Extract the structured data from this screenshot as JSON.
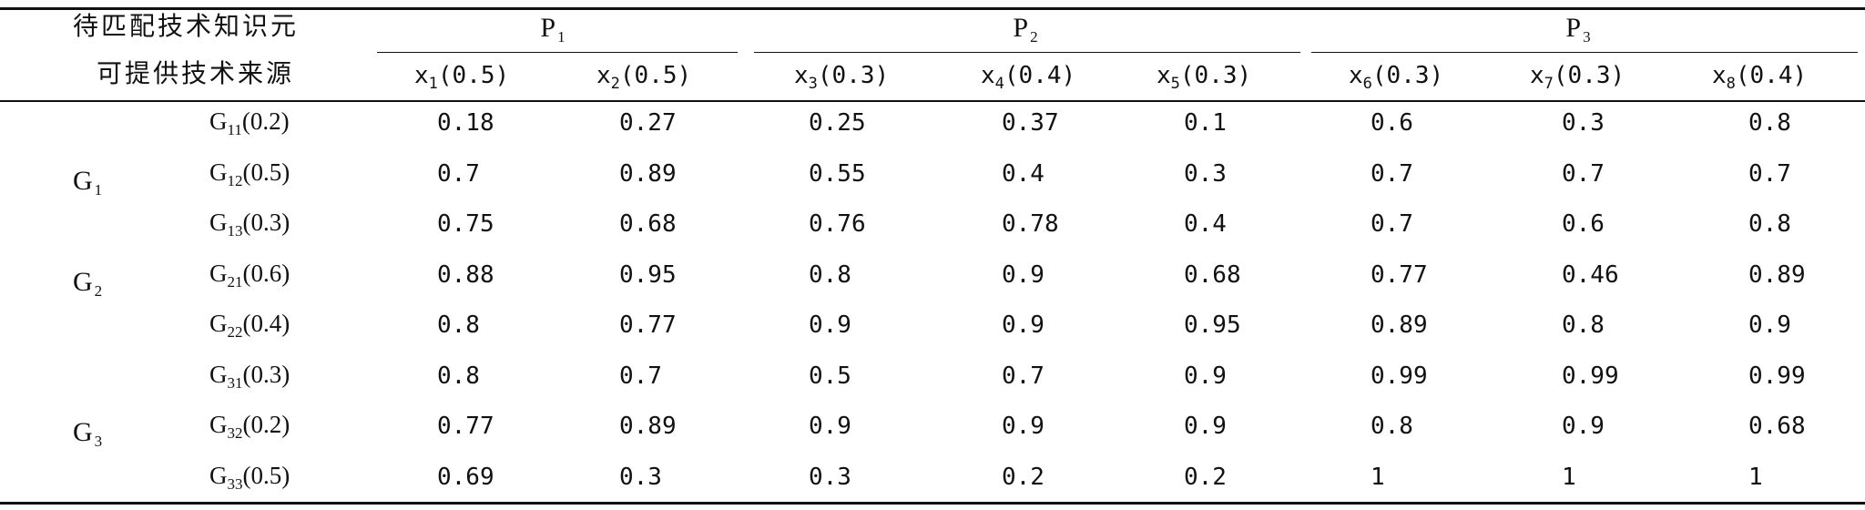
{
  "header": {
    "corner_top": "待匹配技术知识元",
    "corner_bottom": "可提供技术来源",
    "groups": [
      {
        "letter": "P",
        "sub": "1"
      },
      {
        "letter": "P",
        "sub": "2"
      },
      {
        "letter": "P",
        "sub": "3"
      }
    ],
    "columns": [
      {
        "letter": "x",
        "sub": "1",
        "weight": "(0.5)"
      },
      {
        "letter": "x",
        "sub": "2",
        "weight": "(0.5)"
      },
      {
        "letter": "x",
        "sub": "3",
        "weight": "(0.3)"
      },
      {
        "letter": "x",
        "sub": "4",
        "weight": "(0.4)"
      },
      {
        "letter": "x",
        "sub": "5",
        "weight": "(0.3)"
      },
      {
        "letter": "x",
        "sub": "6",
        "weight": "(0.3)"
      },
      {
        "letter": "x",
        "sub": "7",
        "weight": "(0.3)"
      },
      {
        "letter": "x",
        "sub": "8",
        "weight": "(0.4)"
      }
    ]
  },
  "sources": [
    {
      "letter": "G",
      "sub": "1"
    },
    {
      "letter": "G",
      "sub": "2"
    },
    {
      "letter": "G",
      "sub": "3"
    }
  ],
  "rows": [
    {
      "letter": "G",
      "sub": "11",
      "weight": "(0.2)",
      "values": [
        "0.18",
        "0.27",
        "0.25",
        "0.37",
        "0.1",
        "0.6",
        "0.3",
        "0.8"
      ]
    },
    {
      "letter": "G",
      "sub": "12",
      "weight": "(0.5)",
      "values": [
        "0.7",
        "0.89",
        "0.55",
        "0.4",
        "0.3",
        "0.7",
        "0.7",
        "0.7"
      ]
    },
    {
      "letter": "G",
      "sub": "13",
      "weight": "(0.3)",
      "values": [
        "0.75",
        "0.68",
        "0.76",
        "0.78",
        "0.4",
        "0.7",
        "0.6",
        "0.8"
      ]
    },
    {
      "letter": "G",
      "sub": "21",
      "weight": "(0.6)",
      "values": [
        "0.88",
        "0.95",
        "0.8",
        "0.9",
        "0.68",
        "0.77",
        "0.46",
        "0.89"
      ]
    },
    {
      "letter": "G",
      "sub": "22",
      "weight": "(0.4)",
      "values": [
        "0.8",
        "0.77",
        "0.9",
        "0.9",
        "0.95",
        "0.89",
        "0.8",
        "0.9"
      ]
    },
    {
      "letter": "G",
      "sub": "31",
      "weight": "(0.3)",
      "values": [
        "0.8",
        "0.7",
        "0.5",
        "0.7",
        "0.9",
        "0.99",
        "0.99",
        "0.99"
      ]
    },
    {
      "letter": "G",
      "sub": "32",
      "weight": "(0.2)",
      "values": [
        "0.77",
        "0.89",
        "0.9",
        "0.9",
        "0.9",
        "0.8",
        "0.9",
        "0.68"
      ]
    },
    {
      "letter": "G",
      "sub": "33",
      "weight": "(0.5)",
      "values": [
        "0.69",
        "0.3",
        "0.3",
        "0.2",
        "0.2",
        "1",
        "1",
        "1"
      ]
    }
  ]
}
